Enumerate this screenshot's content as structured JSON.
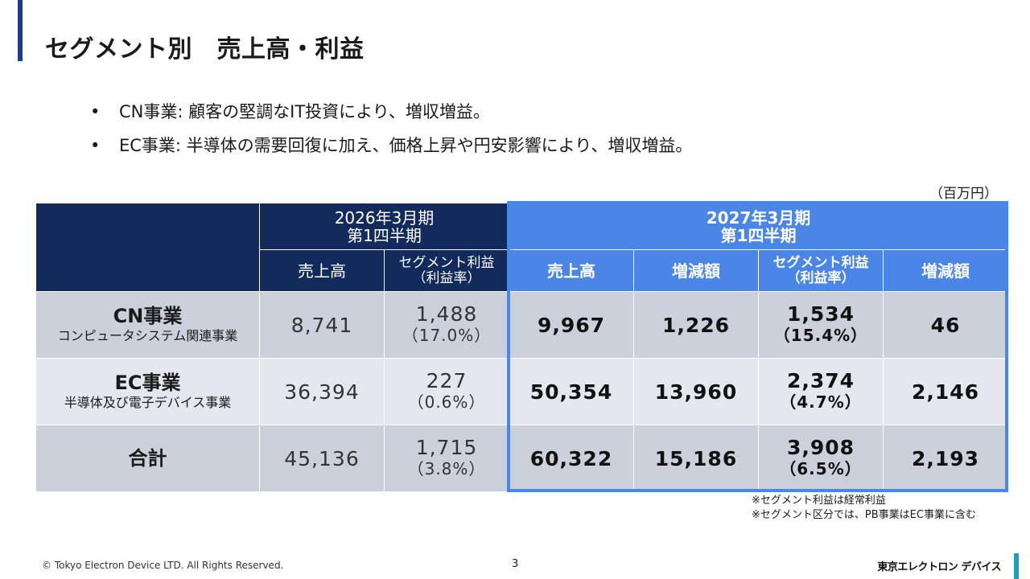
{
  "title": "セグメント別　売上高・利益",
  "bullets": [
    "CN事業: 顧客の堅調なIT投資により、増収増益。",
    "EC事業: 半導体の需要回復に加え、価格上昇や円安影響により、増収増益。"
  ],
  "unit": "（百万円）",
  "table": {
    "period_prev": {
      "line1": "2026年3月期",
      "line2": "第1四半期"
    },
    "period_curr": {
      "line1": "2027年3月期",
      "line2": "第1四半期"
    },
    "col_sales": "売上高",
    "col_profit": "セグメント利益",
    "col_profit_sub": "（利益率）",
    "col_change": "増減額",
    "rows": [
      {
        "name": "CN事業",
        "sub": "コンピュータシステム関連事業",
        "prev_sales": "8,741",
        "prev_profit": "1,488",
        "prev_margin": "（17.0%）",
        "curr_sales": "9,967",
        "sales_change": "1,226",
        "curr_profit": "1,534",
        "curr_margin": "（15.4%）",
        "profit_change": "46"
      },
      {
        "name": "EC事業",
        "sub": "半導体及び電子デバイス事業",
        "prev_sales": "36,394",
        "prev_profit": "227",
        "prev_margin": "（0.6%）",
        "curr_sales": "50,354",
        "sales_change": "13,960",
        "curr_profit": "2,374",
        "curr_margin": "（4.7%）",
        "profit_change": "2,146"
      },
      {
        "name": "合計",
        "sub": "",
        "prev_sales": "45,136",
        "prev_profit": "1,715",
        "prev_margin": "（3.8%）",
        "curr_sales": "60,322",
        "sales_change": "15,186",
        "curr_profit": "3,908",
        "curr_margin": "（6.5%）",
        "profit_change": "2,193"
      }
    ]
  },
  "notes": [
    "※セグメント利益は経常利益",
    "※セグメント区分では、PB事業はEC事業に含む"
  ],
  "footer": {
    "copyright": "© Tokyo Electron Device LTD. All Rights Reserved.",
    "page": "3",
    "logo": "東京エレクトロン デバイス"
  },
  "colors": {
    "navy": "#122a5c",
    "blue": "#4a86e8",
    "row_dark": "#ccd0db",
    "row_light": "#e4e7ee",
    "accent": "#1aa0b8"
  }
}
